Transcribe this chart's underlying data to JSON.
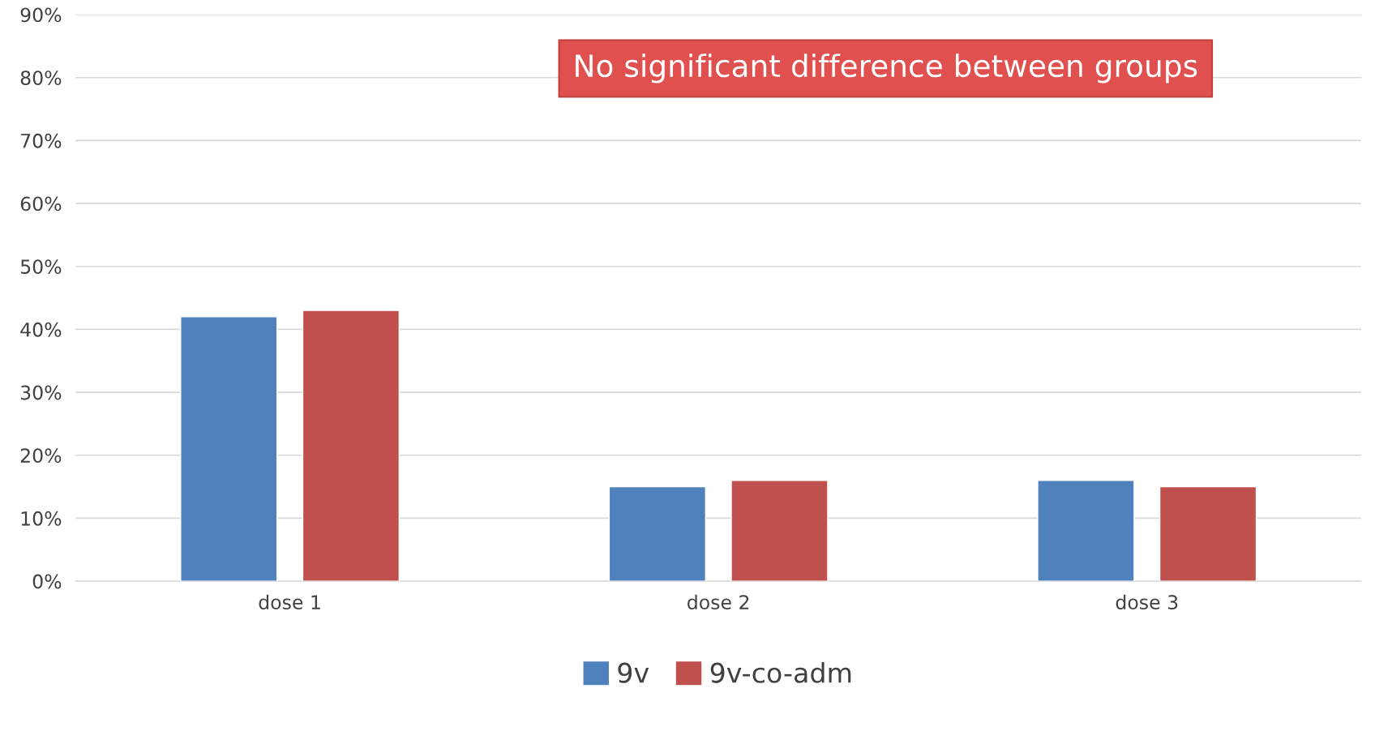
{
  "chart_data": {
    "type": "bar",
    "categories": [
      "dose 1",
      "dose 2",
      "dose 3"
    ],
    "series": [
      {
        "name": "9v",
        "color": "#4f81bd",
        "values": [
          42,
          15,
          16
        ]
      },
      {
        "name": "9v-co-adm",
        "color": "#c0504d",
        "values": [
          43,
          16,
          15
        ]
      }
    ],
    "ylim": [
      0,
      90
    ],
    "yticks": [
      {
        "value": 0,
        "label": "0%"
      },
      {
        "value": 10,
        "label": "10%"
      },
      {
        "value": 20,
        "label": "20%"
      },
      {
        "value": 30,
        "label": "30%"
      },
      {
        "value": 40,
        "label": "40%"
      },
      {
        "value": 50,
        "label": "50%"
      },
      {
        "value": 60,
        "label": "60%"
      },
      {
        "value": 70,
        "label": "70%"
      },
      {
        "value": 80,
        "label": "80%"
      },
      {
        "value": 90,
        "label": "90%"
      }
    ],
    "grid": "y",
    "legend": "bottom",
    "annotations": [
      "No significant difference between groups"
    ]
  }
}
